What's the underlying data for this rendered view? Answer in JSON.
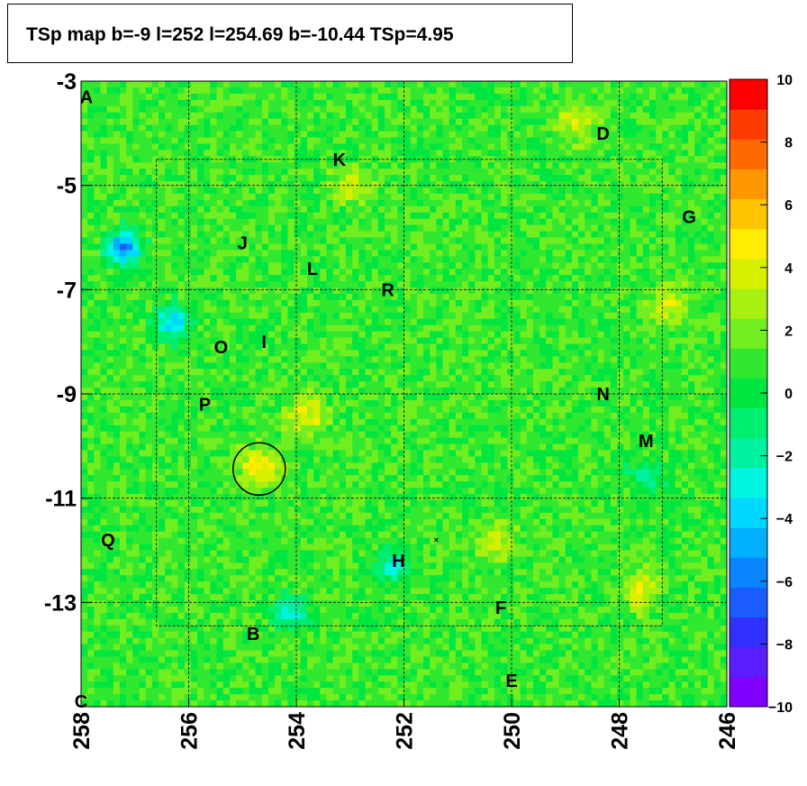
{
  "chart_data": {
    "type": "heatmap",
    "title": "TSp map b=-9 l=252 l=254.69 b=-10.44 TSp=4.95",
    "xlabel": "",
    "ylabel": "",
    "x_axis": {
      "reversed": true,
      "range": [
        258,
        246
      ],
      "ticks": [
        "258",
        "256",
        "254",
        "252",
        "250",
        "248",
        "246"
      ]
    },
    "y_axis": {
      "range": [
        -3,
        -15
      ],
      "ticks": [
        "-3",
        "-5",
        "-7",
        "-9",
        "-11",
        "-13"
      ]
    },
    "colorbar": {
      "range": [
        -10,
        10
      ],
      "ticks": [
        "10",
        "8",
        "6",
        "4",
        "2",
        "0",
        "−2",
        "−4",
        "−6",
        "−8",
        "−10"
      ]
    },
    "grid": true,
    "dominant_value": 1,
    "hotspots": [
      {
        "l": 254.7,
        "b": -10.4,
        "value": 5
      },
      {
        "l": 253.8,
        "b": -9.4,
        "value": 4.5
      },
      {
        "l": 247.1,
        "b": -7.3,
        "value": 4
      },
      {
        "l": 247.6,
        "b": -12.8,
        "value": 4
      },
      {
        "l": 250.3,
        "b": -11.8,
        "value": 3.5
      },
      {
        "l": 248.8,
        "b": -3.8,
        "value": 4
      },
      {
        "l": 253.0,
        "b": -5.0,
        "value": 3.5
      }
    ],
    "coldspots": [
      {
        "l": 257.2,
        "b": -6.2,
        "value": -6
      },
      {
        "l": 256.3,
        "b": -7.6,
        "value": -4
      },
      {
        "l": 254.1,
        "b": -13.2,
        "value": -3
      },
      {
        "l": 252.2,
        "b": -12.3,
        "value": -3
      },
      {
        "l": 247.5,
        "b": -10.6,
        "value": -2
      }
    ],
    "circle": {
      "l": 254.69,
      "b": -10.44,
      "label": ""
    },
    "sources": [
      {
        "label": "A",
        "l": 257.9,
        "b": -3.3
      },
      {
        "label": "B",
        "l": 254.8,
        "b": -13.6
      },
      {
        "label": "C",
        "l": 258.0,
        "b": -14.9
      },
      {
        "label": "D",
        "l": 248.3,
        "b": -4.0
      },
      {
        "label": "E",
        "l": 250.0,
        "b": -14.5
      },
      {
        "label": "F",
        "l": 250.2,
        "b": -13.1
      },
      {
        "label": "G",
        "l": 246.7,
        "b": -5.6
      },
      {
        "label": "H",
        "l": 252.1,
        "b": -12.2
      },
      {
        "label": "I",
        "l": 254.6,
        "b": -8.0
      },
      {
        "label": "J",
        "l": 255.0,
        "b": -6.1
      },
      {
        "label": "K",
        "l": 253.2,
        "b": -4.5
      },
      {
        "label": "L",
        "l": 253.7,
        "b": -6.6
      },
      {
        "label": "M",
        "l": 247.5,
        "b": -9.9
      },
      {
        "label": "N",
        "l": 248.3,
        "b": -9.0
      },
      {
        "label": "O",
        "l": 255.4,
        "b": -8.1
      },
      {
        "label": "P",
        "l": 255.7,
        "b": -9.2
      },
      {
        "label": "Q",
        "l": 257.5,
        "b": -11.8
      },
      {
        "label": "R",
        "l": 252.3,
        "b": -7.0
      }
    ],
    "cross_marker": {
      "l": 251.4,
      "b": -11.8
    }
  },
  "colors": {
    "palette": [
      "#7f00ff",
      "#5a1dff",
      "#3030ff",
      "#1a5cff",
      "#0a85ff",
      "#00b0ff",
      "#00d8ff",
      "#00f5e0",
      "#00f0a0",
      "#00ee70",
      "#00e640",
      "#30e830",
      "#70ee20",
      "#a8f010",
      "#d8f000",
      "#ffec00",
      "#ffc400",
      "#ff9800",
      "#ff6a00",
      "#ff3c00",
      "#ff0000"
    ],
    "grid_line": "#222222"
  }
}
